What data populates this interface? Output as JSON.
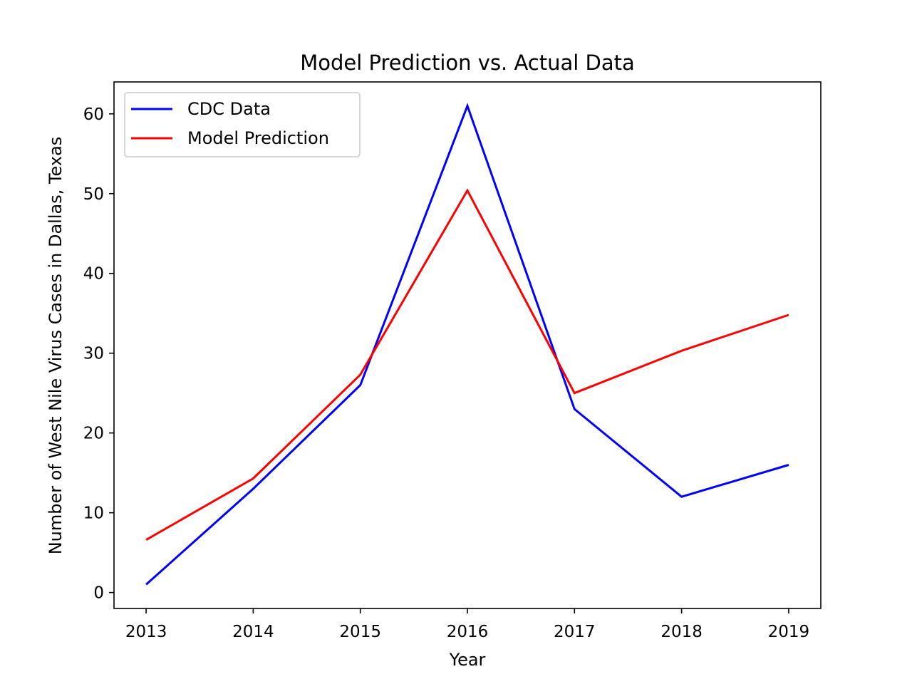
{
  "chart_data": {
    "type": "line",
    "title": "Model Prediction vs. Actual Data",
    "xlabel": "Year",
    "ylabel": "Number of West Nile Virus Cases in Dallas, Texas",
    "x": [
      2013,
      2014,
      2015,
      2016,
      2017,
      2018,
      2019
    ],
    "x_tick_labels": [
      "2013",
      "2014",
      "2015",
      "2016",
      "2017",
      "2018",
      "2019"
    ],
    "xlim": [
      2012.7,
      2019.3
    ],
    "ylim": [
      -2,
      64
    ],
    "y_ticks": [
      0,
      10,
      20,
      30,
      40,
      50,
      60
    ],
    "y_tick_labels": [
      "0",
      "10",
      "20",
      "30",
      "40",
      "50",
      "60"
    ],
    "grid": false,
    "legend_position": "top-left",
    "series": [
      {
        "name": "CDC Data",
        "color": "#0000ff",
        "values": [
          1,
          13,
          26,
          61,
          23,
          12,
          16
        ]
      },
      {
        "name": "Model Prediction",
        "color": "#ff0000",
        "values": [
          6.6,
          14.3,
          27.3,
          50.4,
          25.0,
          30.3,
          34.8
        ]
      }
    ]
  }
}
